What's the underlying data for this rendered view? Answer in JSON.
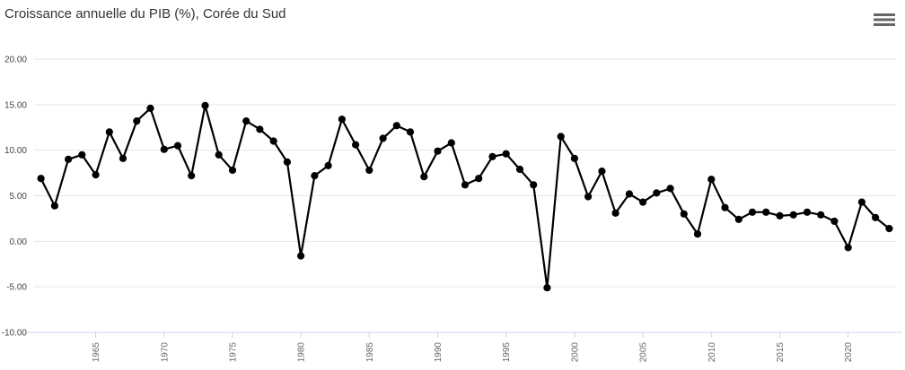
{
  "chart_data": {
    "type": "line",
    "title": "Croissance annuelle du PIB (%), Corée du Sud",
    "xlabel": "",
    "ylabel": "",
    "legend": "none",
    "grid": true,
    "ylim": [
      -10,
      20
    ],
    "x": [
      1961,
      1962,
      1963,
      1964,
      1965,
      1966,
      1967,
      1968,
      1969,
      1970,
      1971,
      1972,
      1973,
      1974,
      1975,
      1976,
      1977,
      1978,
      1979,
      1980,
      1981,
      1982,
      1983,
      1984,
      1985,
      1986,
      1987,
      1988,
      1989,
      1990,
      1991,
      1992,
      1993,
      1994,
      1995,
      1996,
      1997,
      1998,
      1999,
      2000,
      2001,
      2002,
      2003,
      2004,
      2005,
      2006,
      2007,
      2008,
      2009,
      2010,
      2011,
      2012,
      2013,
      2014,
      2015,
      2016,
      2017,
      2018,
      2019,
      2020,
      2021,
      2022,
      2023
    ],
    "values": [
      6.9,
      3.9,
      9.0,
      9.5,
      7.3,
      12.0,
      9.1,
      13.2,
      14.6,
      10.1,
      10.5,
      7.2,
      14.9,
      9.5,
      7.8,
      13.2,
      12.3,
      11.0,
      8.7,
      -1.6,
      7.2,
      8.3,
      13.4,
      10.6,
      7.8,
      11.3,
      12.7,
      12.0,
      7.1,
      9.9,
      10.8,
      6.2,
      6.9,
      9.3,
      9.6,
      7.9,
      6.2,
      -5.1,
      11.5,
      9.1,
      4.9,
      7.7,
      3.1,
      5.2,
      4.3,
      5.3,
      5.8,
      3.0,
      0.8,
      6.8,
      3.7,
      2.4,
      3.2,
      3.2,
      2.8,
      2.9,
      3.2,
      2.9,
      2.2,
      -0.7,
      4.3,
      2.6,
      1.4
    ],
    "y_tick_values": [
      20,
      15,
      10,
      5,
      0,
      -5,
      -10
    ],
    "y_tick_labels": [
      "20.00",
      "15.00",
      "10.00",
      "5.00",
      "0.00",
      "-5.00",
      "-10.00"
    ],
    "x_tick_values": [
      1965,
      1970,
      1975,
      1980,
      1985,
      1990,
      1995,
      2000,
      2005,
      2010,
      2015,
      2020
    ],
    "x_tick_labels": [
      "1965",
      "1970",
      "1975",
      "1980",
      "1985",
      "1990",
      "1995",
      "2000",
      "2005",
      "2010",
      "2015",
      "2020"
    ],
    "marker": "circle",
    "colors": {
      "series": "#000000",
      "grid_line": "#e6e6e6",
      "axis_line": "#ccd6eb",
      "tick_mark": "#ccd6eb",
      "x_label_text": "#666666",
      "y_label_text": "#444444",
      "title_text": "#333333",
      "menu_icon": "#666666",
      "background": "#ffffff"
    }
  }
}
